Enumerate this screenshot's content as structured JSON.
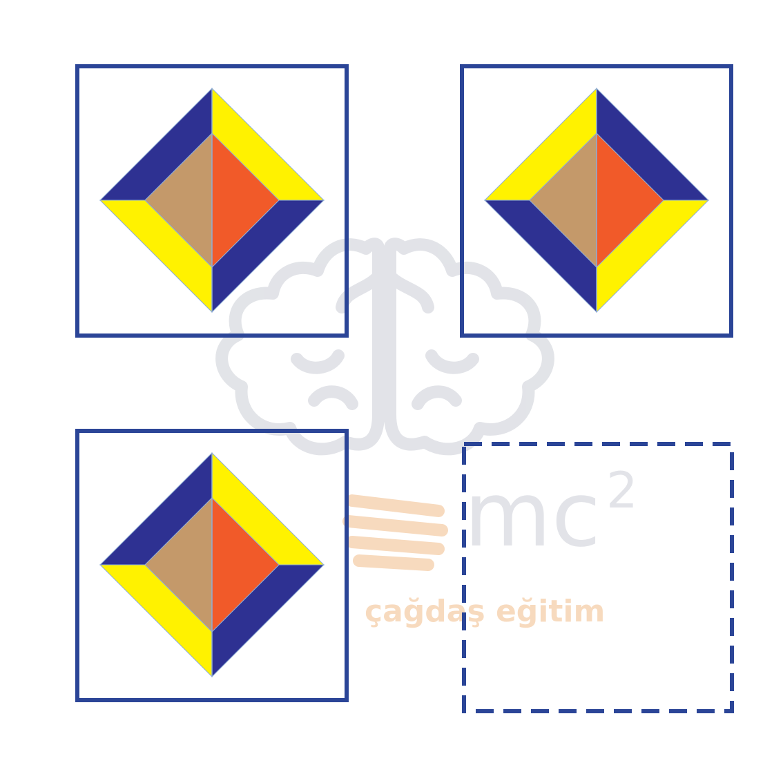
{
  "colors": {
    "frame": "#2b4597",
    "navy": "#2e3192",
    "yellow": "#fff200",
    "tan": "#c4996a",
    "orange": "#f15a29",
    "seam": "#8faed6",
    "watermark_gray": "#dfe1e6",
    "watermark_orange": "#f7d7b8"
  },
  "watermark": {
    "formula": "mc",
    "exponent": "2",
    "brand": "çağdaş eğitim"
  },
  "figures": [
    {
      "id": "figure-1",
      "border": "solid",
      "top_left_band": "navy",
      "top_right_band": "yellow",
      "bottom_left_band": "yellow",
      "bottom_right_band": "navy",
      "left_core": "tan",
      "right_core": "orange"
    },
    {
      "id": "figure-2",
      "border": "solid",
      "top_left_band": "yellow",
      "top_right_band": "navy",
      "bottom_left_band": "navy",
      "bottom_right_band": "yellow",
      "left_core": "tan",
      "right_core": "orange"
    },
    {
      "id": "figure-3",
      "border": "solid",
      "top_left_band": "navy",
      "top_right_band": "yellow",
      "bottom_left_band": "yellow",
      "bottom_right_band": "navy",
      "left_core": "tan",
      "right_core": "orange"
    },
    {
      "id": "answer-box",
      "border": "dashed",
      "empty": true
    }
  ]
}
